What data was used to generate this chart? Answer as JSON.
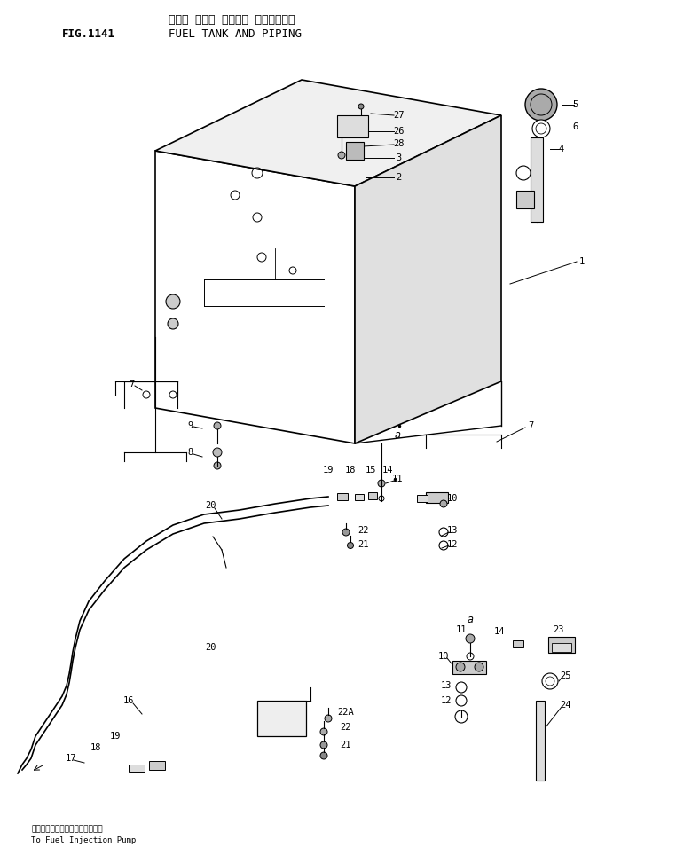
{
  "title_japanese": "フェル タンク オヨビー パイピングー",
  "title_english": "FUEL TANK AND PIPING",
  "fig_label": "FIG.1141",
  "subtitle_bottom_japanese": "フェルインジェクションポンプへ",
  "subtitle_bottom_english": "To Fuel Injection Pump",
  "bg_color": "#ffffff",
  "line_color": "#000000",
  "text_color": "#000000",
  "label_fontsize": 7.5,
  "title_fontsize": 9,
  "fig_label_fontsize": 9
}
